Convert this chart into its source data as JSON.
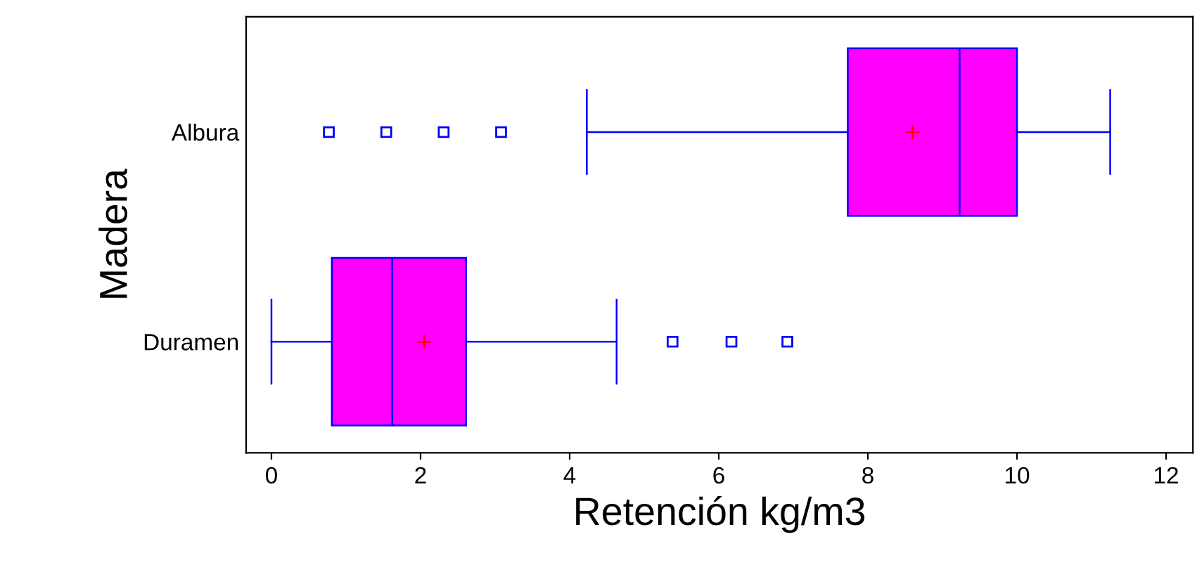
{
  "chart_data": {
    "type": "box",
    "orientation": "horizontal",
    "xlabel": "Retención kg/m3",
    "ylabel": "Madera",
    "categories": [
      "Albura",
      "Duramen"
    ],
    "series": [
      {
        "color": "#ff00ff",
        "marker": "square",
        "boxes": [
          {
            "low": 4.23,
            "q1": 7.73,
            "median": 9.23,
            "q3": 10.0,
            "high": 11.25,
            "mean": 8.6,
            "outliers": [
              0.77,
              1.54,
              2.31,
              3.08
            ]
          },
          {
            "low": 0.0,
            "q1": 0.81,
            "median": 1.62,
            "q3": 2.61,
            "high": 4.63,
            "mean": 2.05,
            "outliers": [
              5.38,
              6.17,
              6.92
            ]
          }
        ]
      }
    ],
    "xlim": [
      -0.34,
      12.36
    ],
    "xticks": [
      0,
      2,
      4,
      6,
      8,
      10,
      12
    ],
    "grid": false,
    "legend": false
  }
}
